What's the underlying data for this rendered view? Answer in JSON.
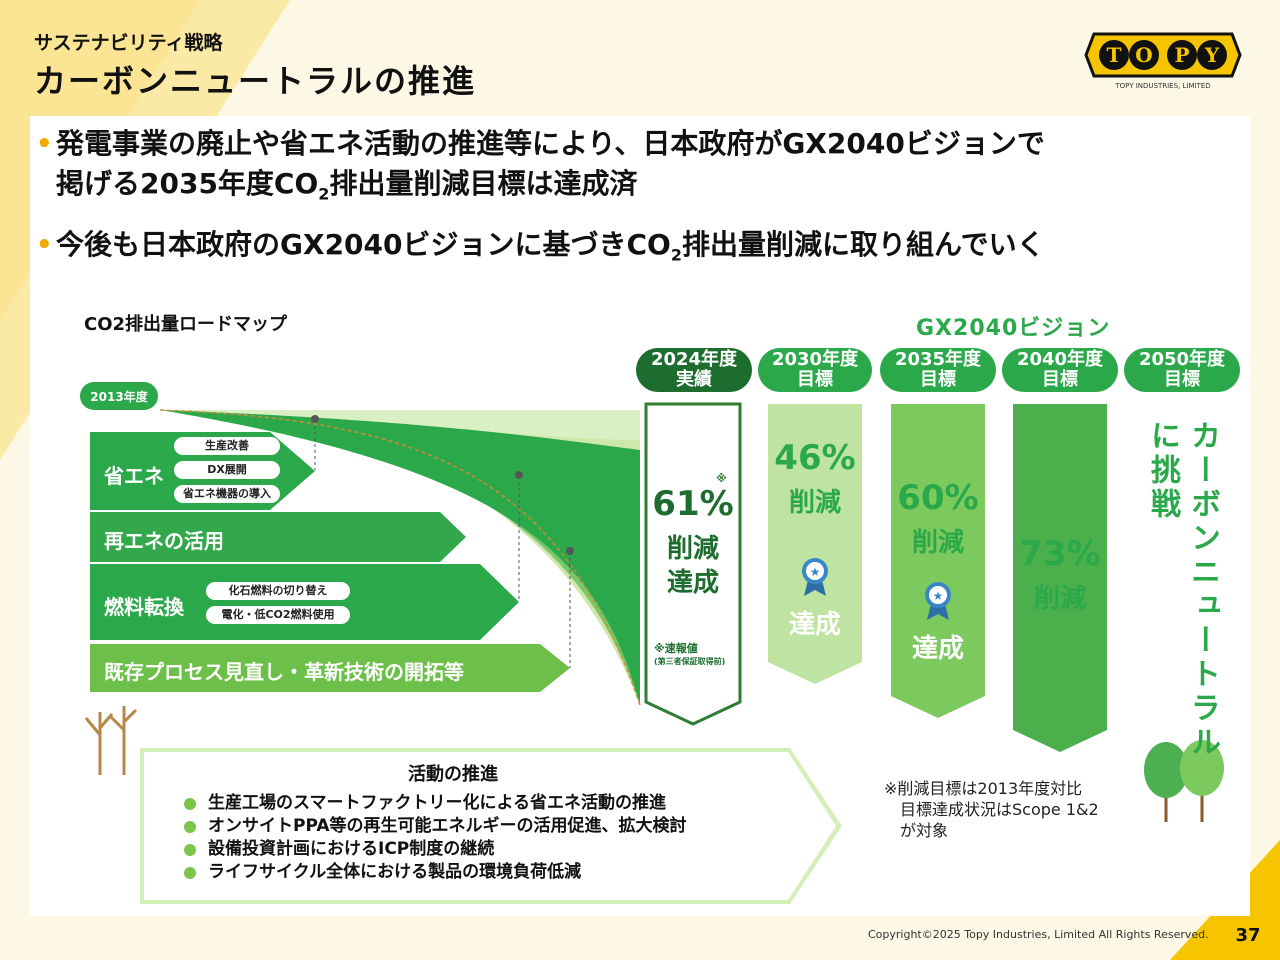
{
  "header": {
    "subtitle": "サステナビリティ戦略",
    "title": "カーボンニュートラルの推進",
    "logo_text": "TOPY",
    "logo_sub": "TOPY INDUSTRIES, LIMITED"
  },
  "bullets": [
    {
      "pre": "発電事業の廃止や省エネ活動の推進等により、日本政府がGX2040ビジョンで\n掲げる2035年度CO",
      "sub": "2",
      "post": "排出量削減目標は達成済"
    },
    {
      "pre": "今後も日本政府のGX2040ビジョンに基づきCO",
      "sub": "2",
      "post": "排出量削減に取り組んでいく"
    }
  ],
  "roadmap": {
    "title": "CO2排出量ロードマップ",
    "base_year": "2013年度",
    "levers": [
      {
        "label": "省エネ",
        "tags": [
          "生産改善",
          "DX展開",
          "省エネ機器の導入"
        ]
      },
      {
        "label": "再エネの活用",
        "tags": []
      },
      {
        "label": "燃料転換",
        "tags": [
          "化石燃料の切り替え",
          "電化・低CO2燃料使用"
        ]
      },
      {
        "label": "既存プロセス見直し・革新技術の開拓等",
        "tags": []
      }
    ]
  },
  "gx_title": "GX2040ビジョン",
  "columns": [
    {
      "head1": "2024年度",
      "head2": "実績",
      "value": "61%",
      "line1": "削減",
      "line2": "達成",
      "mark": "※",
      "note1": "※速報値",
      "note2": "(第三者保証取得前)"
    },
    {
      "head1": "2030年度",
      "head2": "目標",
      "value": "46%",
      "line1": "削減",
      "status": "達成"
    },
    {
      "head1": "2035年度",
      "head2": "目標",
      "value": "60%",
      "line1": "削減",
      "status": "達成"
    },
    {
      "head1": "2040年度",
      "head2": "目標",
      "value": "73%",
      "line1": "削減"
    },
    {
      "head1": "2050年度",
      "head2": "目標",
      "vertical1": "カーボンニュートラル",
      "vertical2": "に挑戦"
    }
  ],
  "activities": {
    "title": "活動の推進",
    "items": [
      "生産工場のスマートファクトリー化による省エネ活動の推進",
      "オンサイトPPA等の再生可能エネルギーの活用促進、拡大検討",
      "設備投資計画におけるICP制度の継続",
      "ライフサイクル全体における製品の環境負荷低減"
    ]
  },
  "note": "※削減目標は2013年度対比\n　目標達成状況はScope 1&2\n　が対象",
  "footer": {
    "copyright": "Copyright©2025 Topy Industries, Limited All Rights Reserved.",
    "page": "37"
  },
  "colors": {
    "accent": "#2aa84a",
    "dark_green": "#1c6d2e",
    "yellow": "#f2a900",
    "background": "#fdf8e6"
  }
}
